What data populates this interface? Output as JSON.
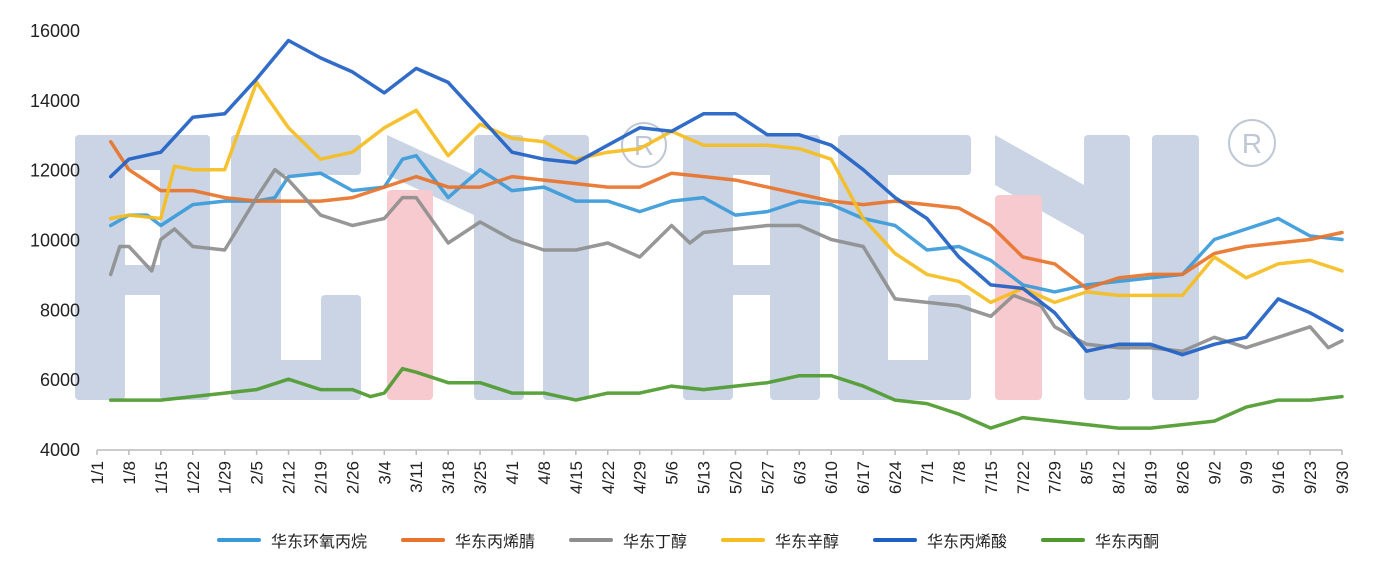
{
  "chart_data": {
    "type": "line",
    "title": "",
    "xlabel": "",
    "ylabel": "",
    "ylim": [
      4000,
      16000
    ],
    "yticks": [
      "4000",
      "6000",
      "8000",
      "10000",
      "12000",
      "14000",
      "16000"
    ],
    "xticks": [
      "1/1",
      "1/8",
      "1/15",
      "1/22",
      "1/29",
      "2/5",
      "2/12",
      "2/19",
      "2/26",
      "3/4",
      "3/11",
      "3/18",
      "3/25",
      "4/1",
      "4/8",
      "4/15",
      "4/22",
      "4/29",
      "5/6",
      "5/13",
      "5/20",
      "5/27",
      "6/3",
      "6/10",
      "6/17",
      "6/24",
      "7/1",
      "7/8",
      "7/15",
      "7/22",
      "7/29",
      "8/5",
      "8/12",
      "8/19",
      "8/26",
      "9/2",
      "9/9",
      "9/16",
      "9/23",
      "9/30"
    ],
    "grid": false,
    "legend_position": "bottom",
    "watermark": "SCMI SCMI ®",
    "series": [
      {
        "name": "华东环氧丙烷",
        "color": "#3a9ad9",
        "points": [
          [
            "1/4",
            10400
          ],
          [
            "1/8",
            10700
          ],
          [
            "1/12",
            10700
          ],
          [
            "1/15",
            10400
          ],
          [
            "1/22",
            11000
          ],
          [
            "1/29",
            11100
          ],
          [
            "2/5",
            11100
          ],
          [
            "2/9",
            11200
          ],
          [
            "2/12",
            11800
          ],
          [
            "2/19",
            11900
          ],
          [
            "2/26",
            11400
          ],
          [
            "3/4",
            11500
          ],
          [
            "3/8",
            12300
          ],
          [
            "3/11",
            12400
          ],
          [
            "3/18",
            11200
          ],
          [
            "3/25",
            12000
          ],
          [
            "4/1",
            11400
          ],
          [
            "4/8",
            11500
          ],
          [
            "4/15",
            11100
          ],
          [
            "4/22",
            11100
          ],
          [
            "4/29",
            10800
          ],
          [
            "5/6",
            11100
          ],
          [
            "5/13",
            11200
          ],
          [
            "5/20",
            10700
          ],
          [
            "5/27",
            10800
          ],
          [
            "6/3",
            11100
          ],
          [
            "6/10",
            11000
          ],
          [
            "6/17",
            10600
          ],
          [
            "6/24",
            10400
          ],
          [
            "7/1",
            9700
          ],
          [
            "7/8",
            9800
          ],
          [
            "7/15",
            9400
          ],
          [
            "7/22",
            8700
          ],
          [
            "7/29",
            8500
          ],
          [
            "8/5",
            8700
          ],
          [
            "8/12",
            8800
          ],
          [
            "8/19",
            8900
          ],
          [
            "8/26",
            9000
          ],
          [
            "9/2",
            10000
          ],
          [
            "9/9",
            10300
          ],
          [
            "9/16",
            10600
          ],
          [
            "9/23",
            10100
          ],
          [
            "9/30",
            10000
          ]
        ]
      },
      {
        "name": "华东丙烯腈",
        "color": "#e8732a",
        "points": [
          [
            "1/4",
            12800
          ],
          [
            "1/8",
            12000
          ],
          [
            "1/15",
            11400
          ],
          [
            "1/22",
            11400
          ],
          [
            "1/29",
            11200
          ],
          [
            "2/5",
            11100
          ],
          [
            "2/12",
            11100
          ],
          [
            "2/19",
            11100
          ],
          [
            "2/26",
            11200
          ],
          [
            "3/4",
            11500
          ],
          [
            "3/11",
            11800
          ],
          [
            "3/18",
            11500
          ],
          [
            "3/25",
            11500
          ],
          [
            "4/1",
            11800
          ],
          [
            "4/8",
            11700
          ],
          [
            "4/15",
            11600
          ],
          [
            "4/22",
            11500
          ],
          [
            "4/29",
            11500
          ],
          [
            "5/6",
            11900
          ],
          [
            "5/13",
            11800
          ],
          [
            "5/20",
            11700
          ],
          [
            "5/27",
            11500
          ],
          [
            "6/3",
            11300
          ],
          [
            "6/10",
            11100
          ],
          [
            "6/17",
            11000
          ],
          [
            "6/24",
            11100
          ],
          [
            "7/1",
            11000
          ],
          [
            "7/8",
            10900
          ],
          [
            "7/15",
            10400
          ],
          [
            "7/22",
            9500
          ],
          [
            "7/29",
            9300
          ],
          [
            "8/5",
            8600
          ],
          [
            "8/12",
            8900
          ],
          [
            "8/19",
            9000
          ],
          [
            "8/26",
            9000
          ],
          [
            "9/2",
            9600
          ],
          [
            "9/9",
            9800
          ],
          [
            "9/16",
            9900
          ],
          [
            "9/23",
            10000
          ],
          [
            "9/30",
            10200
          ]
        ]
      },
      {
        "name": "华东丁醇",
        "color": "#8e8e8e",
        "points": [
          [
            "1/4",
            9000
          ],
          [
            "1/6",
            9800
          ],
          [
            "1/8",
            9800
          ],
          [
            "1/13",
            9100
          ],
          [
            "1/15",
            10000
          ],
          [
            "1/18",
            10300
          ],
          [
            "1/22",
            9800
          ],
          [
            "1/29",
            9700
          ],
          [
            "2/5",
            11200
          ],
          [
            "2/9",
            12000
          ],
          [
            "2/12",
            11700
          ],
          [
            "2/19",
            10700
          ],
          [
            "2/26",
            10400
          ],
          [
            "3/4",
            10600
          ],
          [
            "3/8",
            11200
          ],
          [
            "3/11",
            11200
          ],
          [
            "3/18",
            9900
          ],
          [
            "3/25",
            10500
          ],
          [
            "4/1",
            10000
          ],
          [
            "4/8",
            9700
          ],
          [
            "4/15",
            9700
          ],
          [
            "4/22",
            9900
          ],
          [
            "4/29",
            9500
          ],
          [
            "5/6",
            10400
          ],
          [
            "5/10",
            9900
          ],
          [
            "5/13",
            10200
          ],
          [
            "5/20",
            10300
          ],
          [
            "5/27",
            10400
          ],
          [
            "6/3",
            10400
          ],
          [
            "6/10",
            10000
          ],
          [
            "6/17",
            9800
          ],
          [
            "6/24",
            8300
          ],
          [
            "7/1",
            8200
          ],
          [
            "7/8",
            8100
          ],
          [
            "7/15",
            7800
          ],
          [
            "7/20",
            8400
          ],
          [
            "7/26",
            8100
          ],
          [
            "7/29",
            7500
          ],
          [
            "8/5",
            7000
          ],
          [
            "8/12",
            6900
          ],
          [
            "8/19",
            6900
          ],
          [
            "8/26",
            6800
          ],
          [
            "9/2",
            7200
          ],
          [
            "9/9",
            6900
          ],
          [
            "9/16",
            7200
          ],
          [
            "9/23",
            7500
          ],
          [
            "9/27",
            6900
          ],
          [
            "9/30",
            7100
          ]
        ]
      },
      {
        "name": "华东辛醇",
        "color": "#f5bd1f",
        "points": [
          [
            "1/4",
            10600
          ],
          [
            "1/8",
            10700
          ],
          [
            "1/15",
            10600
          ],
          [
            "1/18",
            12100
          ],
          [
            "1/22",
            12000
          ],
          [
            "1/29",
            12000
          ],
          [
            "2/5",
            14500
          ],
          [
            "2/12",
            13200
          ],
          [
            "2/19",
            12300
          ],
          [
            "2/26",
            12500
          ],
          [
            "3/4",
            13200
          ],
          [
            "3/11",
            13700
          ],
          [
            "3/18",
            12400
          ],
          [
            "3/25",
            13300
          ],
          [
            "4/1",
            12900
          ],
          [
            "4/8",
            12800
          ],
          [
            "4/15",
            12300
          ],
          [
            "4/22",
            12500
          ],
          [
            "4/29",
            12600
          ],
          [
            "5/6",
            13100
          ],
          [
            "5/13",
            12700
          ],
          [
            "5/20",
            12700
          ],
          [
            "5/27",
            12700
          ],
          [
            "6/3",
            12600
          ],
          [
            "6/10",
            12300
          ],
          [
            "6/17",
            10600
          ],
          [
            "6/24",
            9600
          ],
          [
            "7/1",
            9000
          ],
          [
            "7/8",
            8800
          ],
          [
            "7/15",
            8200
          ],
          [
            "7/22",
            8600
          ],
          [
            "7/29",
            8200
          ],
          [
            "8/5",
            8500
          ],
          [
            "8/12",
            8400
          ],
          [
            "8/19",
            8400
          ],
          [
            "8/26",
            8400
          ],
          [
            "9/2",
            9500
          ],
          [
            "9/9",
            8900
          ],
          [
            "9/16",
            9300
          ],
          [
            "9/23",
            9400
          ],
          [
            "9/30",
            9100
          ]
        ]
      },
      {
        "name": "华东丙烯酸",
        "color": "#1f5fc4",
        "points": [
          [
            "1/4",
            11800
          ],
          [
            "1/8",
            12300
          ],
          [
            "1/15",
            12500
          ],
          [
            "1/22",
            13500
          ],
          [
            "1/29",
            13600
          ],
          [
            "2/5",
            14600
          ],
          [
            "2/12",
            15700
          ],
          [
            "2/19",
            15200
          ],
          [
            "2/26",
            14800
          ],
          [
            "3/4",
            14200
          ],
          [
            "3/11",
            14900
          ],
          [
            "3/18",
            14500
          ],
          [
            "3/25",
            13500
          ],
          [
            "4/1",
            12500
          ],
          [
            "4/8",
            12300
          ],
          [
            "4/15",
            12200
          ],
          [
            "4/22",
            12700
          ],
          [
            "4/29",
            13200
          ],
          [
            "5/6",
            13100
          ],
          [
            "5/13",
            13600
          ],
          [
            "5/20",
            13600
          ],
          [
            "5/27",
            13000
          ],
          [
            "6/3",
            13000
          ],
          [
            "6/10",
            12700
          ],
          [
            "6/17",
            12000
          ],
          [
            "6/24",
            11200
          ],
          [
            "7/1",
            10600
          ],
          [
            "7/8",
            9500
          ],
          [
            "7/15",
            8700
          ],
          [
            "7/22",
            8600
          ],
          [
            "7/29",
            7900
          ],
          [
            "8/5",
            6800
          ],
          [
            "8/12",
            7000
          ],
          [
            "8/19",
            7000
          ],
          [
            "8/26",
            6700
          ],
          [
            "9/2",
            7000
          ],
          [
            "9/9",
            7200
          ],
          [
            "9/16",
            8300
          ],
          [
            "9/23",
            7900
          ],
          [
            "9/30",
            7400
          ]
        ]
      },
      {
        "name": "华东丙酮",
        "color": "#4e9a2f",
        "points": [
          [
            "1/4",
            5400
          ],
          [
            "1/15",
            5400
          ],
          [
            "1/22",
            5500
          ],
          [
            "1/29",
            5600
          ],
          [
            "2/5",
            5700
          ],
          [
            "2/12",
            6000
          ],
          [
            "2/19",
            5700
          ],
          [
            "2/26",
            5700
          ],
          [
            "3/1",
            5500
          ],
          [
            "3/4",
            5600
          ],
          [
            "3/8",
            6300
          ],
          [
            "3/11",
            6200
          ],
          [
            "3/18",
            5900
          ],
          [
            "3/25",
            5900
          ],
          [
            "4/1",
            5600
          ],
          [
            "4/8",
            5600
          ],
          [
            "4/15",
            5400
          ],
          [
            "4/22",
            5600
          ],
          [
            "4/29",
            5600
          ],
          [
            "5/6",
            5800
          ],
          [
            "5/13",
            5700
          ],
          [
            "5/20",
            5800
          ],
          [
            "5/27",
            5900
          ],
          [
            "6/3",
            6100
          ],
          [
            "6/10",
            6100
          ],
          [
            "6/17",
            5800
          ],
          [
            "6/24",
            5400
          ],
          [
            "7/1",
            5300
          ],
          [
            "7/8",
            5000
          ],
          [
            "7/15",
            4600
          ],
          [
            "7/22",
            4900
          ],
          [
            "7/29",
            4800
          ],
          [
            "8/5",
            4700
          ],
          [
            "8/12",
            4600
          ],
          [
            "8/19",
            4600
          ],
          [
            "8/26",
            4700
          ],
          [
            "9/2",
            4800
          ],
          [
            "9/9",
            5200
          ],
          [
            "9/16",
            5400
          ],
          [
            "9/23",
            5400
          ],
          [
            "9/30",
            5500
          ]
        ]
      }
    ]
  }
}
